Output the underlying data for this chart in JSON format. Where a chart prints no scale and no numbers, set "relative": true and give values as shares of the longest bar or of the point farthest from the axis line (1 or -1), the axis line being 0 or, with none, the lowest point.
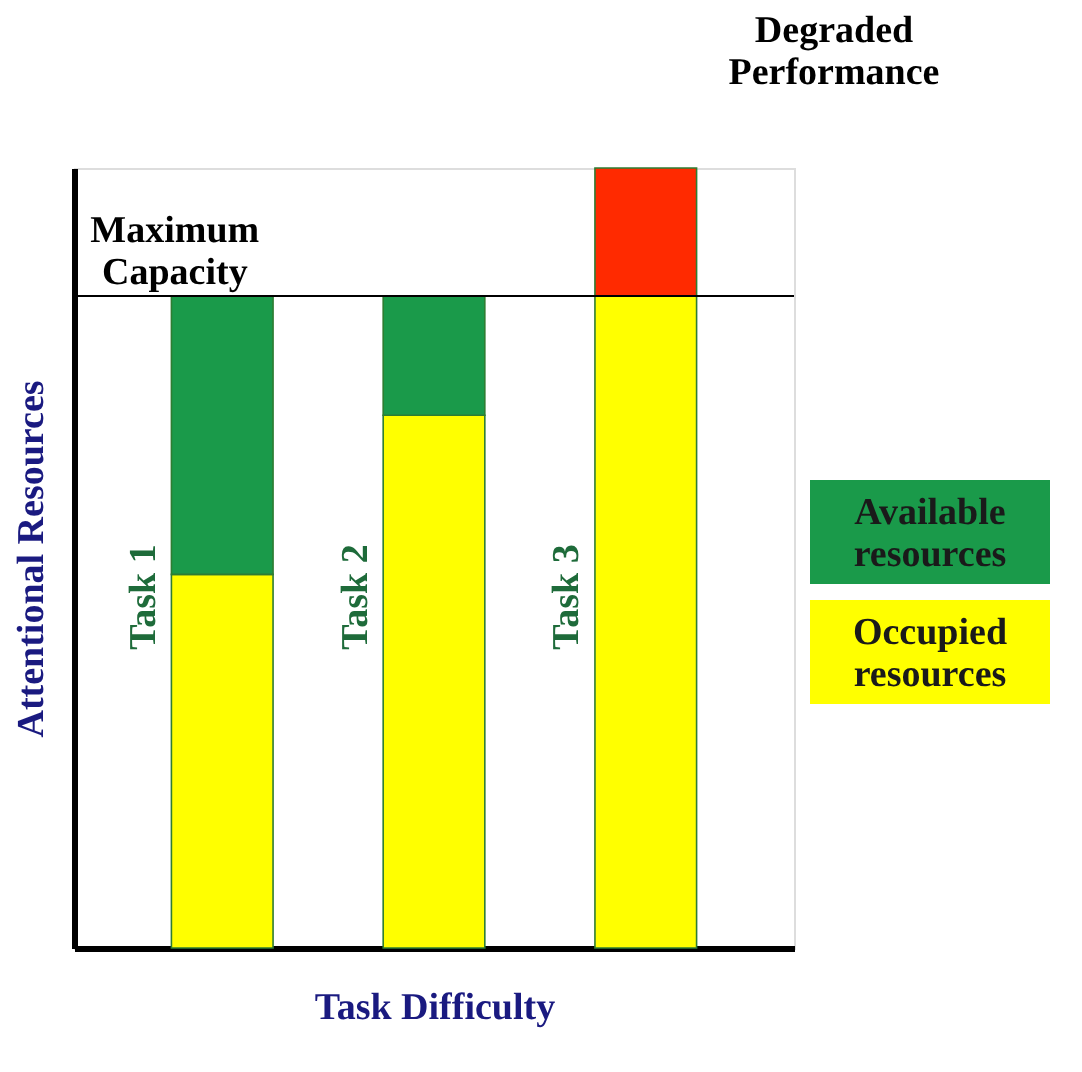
{
  "chart_data": {
    "type": "bar",
    "stacked": true,
    "relative": true,
    "xlabel": "Task Difficulty",
    "ylabel": "Attentional Resources",
    "categories": [
      "Task 1",
      "Task 2",
      "Task 3"
    ],
    "series": [
      {
        "name": "Occupied resources",
        "color": "#ffff00",
        "values": [
          0.479,
          0.683,
          0.836
        ]
      },
      {
        "name": "Available resources",
        "color": "#1a9a4a",
        "values": [
          0.357,
          0.153,
          null
        ]
      },
      {
        "color": "#ff2a00",
        "values": [
          null,
          null,
          0.164
        ]
      }
    ],
    "ref_lines": [
      {
        "axis": "y",
        "value": 0.836,
        "label": "Maximum Capacity",
        "color": "#000000"
      }
    ],
    "annotations": [
      "Degraded Performance"
    ],
    "legend": "right",
    "grid": false
  }
}
